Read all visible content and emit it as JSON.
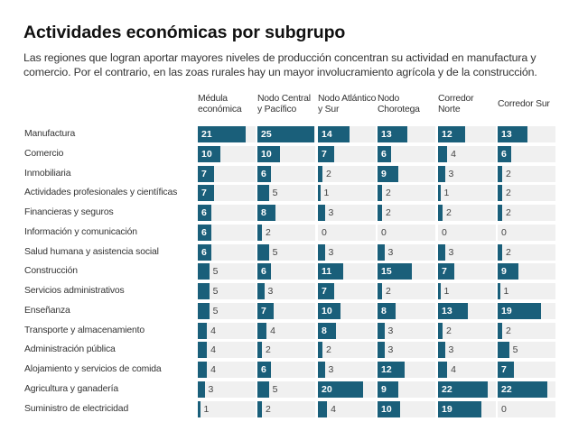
{
  "header": {
    "title": "Actividades económicas por subgrupo",
    "subtitle": "Las regiones que logran aportar mayores niveles de producción concentran su actividad en manufactura y comercio. Por el contrario, en las zoas rurales hay un mayor involucramiento agrícola y de la construcción."
  },
  "colors": {
    "bar": "#1a5f7a",
    "cell_bg": "#f0f0f0"
  },
  "chart_data": {
    "type": "table",
    "title": "Actividades económicas por subgrupo",
    "columns": [
      "Médula económica",
      "Nodo Central y Pacífico",
      "Nodo Atlántico y Sur",
      "Nodo Chorotega",
      "Corredor Norte",
      "Corredor Sur"
    ],
    "rows": [
      "Manufactura",
      "Comercio",
      "Inmobiliaria",
      "Actividades profesionales y científicas",
      "Financieras y seguros",
      "Información y comunicación",
      "Salud humana y asistencia social",
      "Construcción",
      "Servicios administrativos",
      "Enseñanza",
      "Transporte y almacenamiento",
      "Administración pública",
      "Alojamiento y servicios de comida",
      "Agricultura y ganadería",
      "Suministro de electricidad"
    ],
    "values": [
      [
        21,
        25,
        14,
        13,
        12,
        13
      ],
      [
        10,
        10,
        7,
        6,
        4,
        6
      ],
      [
        7,
        6,
        2,
        9,
        3,
        2
      ],
      [
        7,
        5,
        1,
        2,
        1,
        2
      ],
      [
        6,
        8,
        3,
        2,
        2,
        2
      ],
      [
        6,
        2,
        0,
        0,
        0,
        0
      ],
      [
        6,
        5,
        3,
        3,
        3,
        2
      ],
      [
        5,
        6,
        11,
        15,
        7,
        9
      ],
      [
        5,
        3,
        7,
        2,
        1,
        1
      ],
      [
        5,
        7,
        10,
        8,
        13,
        19
      ],
      [
        4,
        4,
        8,
        3,
        2,
        2
      ],
      [
        4,
        2,
        2,
        3,
        3,
        5
      ],
      [
        4,
        6,
        3,
        12,
        4,
        7
      ],
      [
        3,
        5,
        20,
        9,
        22,
        22
      ],
      [
        1,
        2,
        4,
        10,
        19,
        0
      ]
    ],
    "scale_max": 25,
    "label_inside_threshold": 6
  }
}
